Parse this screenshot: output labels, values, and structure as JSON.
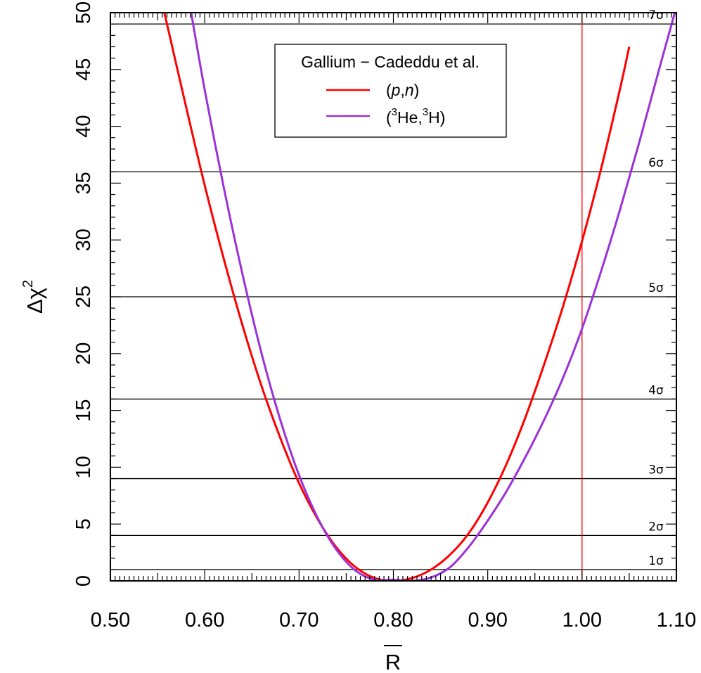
{
  "chart_data": {
    "type": "line",
    "xlabel": "R",
    "ylabel": "Δχ",
    "ylabel_superscript": "2",
    "xlim": [
      0.5,
      1.1
    ],
    "ylim": [
      0,
      50
    ],
    "x_ticks": [
      "0.50",
      "0.60",
      "0.70",
      "0.80",
      "0.90",
      "1.00",
      "1.10"
    ],
    "x_tick_values": [
      0.5,
      0.6,
      0.7,
      0.8,
      0.9,
      1.0,
      1.1
    ],
    "y_ticks": [
      "0",
      "5",
      "10",
      "15",
      "20",
      "25",
      "30",
      "35",
      "40",
      "45",
      "50"
    ],
    "y_tick_values": [
      0,
      5,
      10,
      15,
      20,
      25,
      30,
      35,
      40,
      45,
      50
    ],
    "legend": {
      "title": "Gallium − Cadeddu et al.",
      "placement": "top-center"
    },
    "series": [
      {
        "name": "(p,n)",
        "color": "#ff0000",
        "x": [
          0.555,
          0.56,
          0.58,
          0.6,
          0.62,
          0.64,
          0.66,
          0.68,
          0.7,
          0.72,
          0.74,
          0.76,
          0.78,
          0.8,
          0.82,
          0.84,
          0.86,
          0.88,
          0.9,
          0.92,
          0.94,
          0.96,
          0.98,
          1.0,
          1.02,
          1.04,
          1.05
        ],
        "y": [
          50.8,
          49.0,
          41.8,
          34.8,
          28.4,
          22.5,
          17.2,
          12.6,
          8.6,
          5.4,
          2.9,
          1.2,
          0.25,
          0.0,
          0.25,
          1.0,
          2.3,
          4.2,
          6.9,
          10.3,
          14.4,
          19.1,
          24.2,
          29.9,
          36.2,
          43.2,
          47.0
        ]
      },
      {
        "name": "(³He,³H)",
        "color": "#9a32d8",
        "x": [
          0.585,
          0.6,
          0.62,
          0.64,
          0.66,
          0.68,
          0.7,
          0.72,
          0.74,
          0.76,
          0.78,
          0.8,
          0.82,
          0.84,
          0.86,
          0.88,
          0.9,
          0.92,
          0.94,
          0.96,
          0.98,
          1.0,
          1.02,
          1.04,
          1.06,
          1.08,
          1.1
        ],
        "y": [
          50.3,
          43.2,
          34.7,
          27.0,
          20.1,
          14.2,
          9.3,
          5.5,
          2.7,
          0.9,
          0.1,
          0.1,
          0.0,
          0.3,
          1.2,
          3.0,
          5.3,
          7.9,
          10.9,
          14.2,
          17.9,
          22.2,
          27.2,
          32.6,
          38.4,
          44.5,
          50.5
        ]
      }
    ],
    "sigma_levels": [
      {
        "label": "1σ",
        "value": 1
      },
      {
        "label": "2σ",
        "value": 4
      },
      {
        "label": "3σ",
        "value": 9
      },
      {
        "label": "4σ",
        "value": 16
      },
      {
        "label": "5σ",
        "value": 25
      },
      {
        "label": "6σ",
        "value": 36
      },
      {
        "label": "7σ",
        "value": 49
      }
    ],
    "reference_line": {
      "x": 1.0,
      "color": "#ff0000"
    },
    "grid": false
  }
}
